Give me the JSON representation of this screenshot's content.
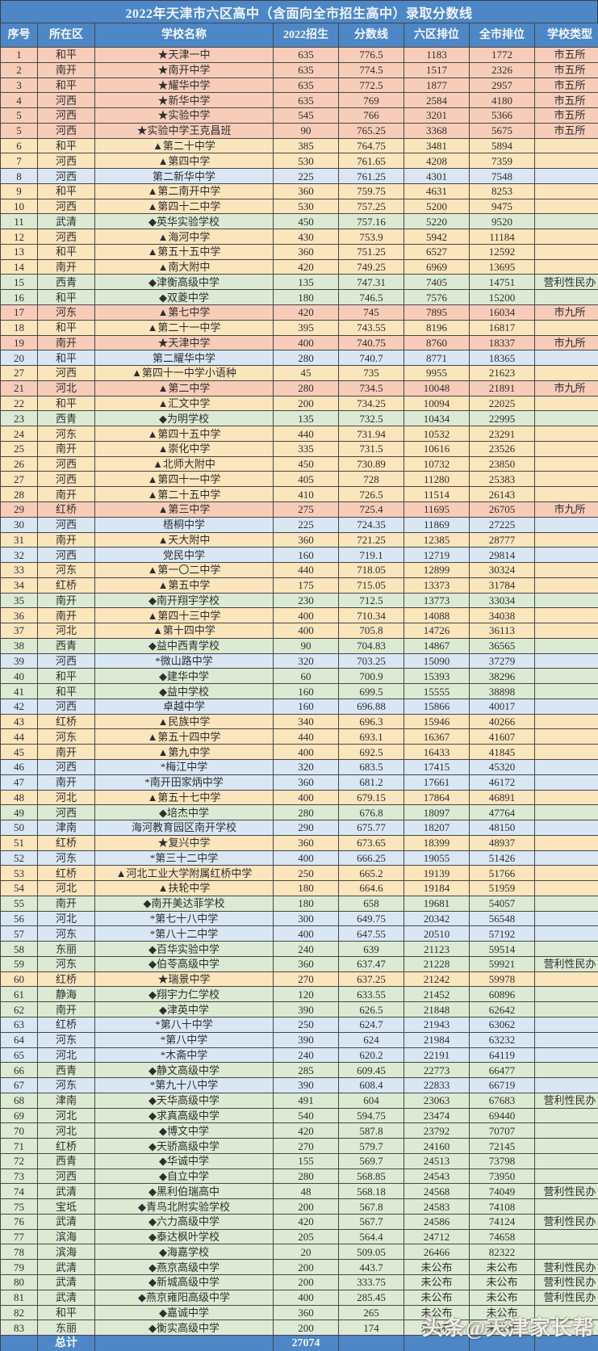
{
  "title": "2022年天津市六区高中（含面向全市招生高中）录取分数线",
  "columns": [
    "序号",
    "所在区",
    "学校名称",
    "2022招生",
    "分数线",
    "六区排位",
    "全市排位",
    "学校类型"
  ],
  "total": {
    "no": "",
    "district": "总计",
    "school": "",
    "enroll": "27074",
    "score": "",
    "rank6": "",
    "rank_city": "",
    "type": ""
  },
  "watermark": "头条@天津家长帮",
  "colors": {
    "header_blue": "#4d87c7",
    "pink": "#f7cdba",
    "yellow": "#fbe5bd",
    "blue": "#d9e7f5",
    "green": "#dcead3"
  },
  "rows": [
    {
      "no": "1",
      "district": "和平",
      "school": "★天津一中",
      "enroll": "635",
      "score": "776.5",
      "rank6": "1183",
      "rank_city": "1772",
      "type": "市五所",
      "color": "pink"
    },
    {
      "no": "2",
      "district": "南开",
      "school": "★南开中学",
      "enroll": "635",
      "score": "774.5",
      "rank6": "1517",
      "rank_city": "2326",
      "type": "市五所",
      "color": "pink"
    },
    {
      "no": "3",
      "district": "和平",
      "school": "★耀华中学",
      "enroll": "635",
      "score": "772.5",
      "rank6": "1877",
      "rank_city": "2957",
      "type": "市五所",
      "color": "pink"
    },
    {
      "no": "4",
      "district": "河西",
      "school": "★新华中学",
      "enroll": "635",
      "score": "769",
      "rank6": "2584",
      "rank_city": "4180",
      "type": "市五所",
      "color": "pink"
    },
    {
      "no": "5",
      "district": "河西",
      "school": "★实验中学",
      "enroll": "545",
      "score": "766",
      "rank6": "3201",
      "rank_city": "5366",
      "type": "市五所",
      "color": "pink"
    },
    {
      "no": "5",
      "district": "河西",
      "school": "★实验中学王克昌班",
      "enroll": "90",
      "score": "765.25",
      "rank6": "3368",
      "rank_city": "5675",
      "type": "市五所",
      "color": "pink"
    },
    {
      "no": "6",
      "district": "和平",
      "school": "▲第二十中学",
      "enroll": "385",
      "score": "764.75",
      "rank6": "3481",
      "rank_city": "5894",
      "type": "",
      "color": "yellow"
    },
    {
      "no": "7",
      "district": "河西",
      "school": "▲第四中学",
      "enroll": "530",
      "score": "761.65",
      "rank6": "4208",
      "rank_city": "7359",
      "type": "",
      "color": "yellow"
    },
    {
      "no": "8",
      "district": "河西",
      "school": "第二新华中学",
      "enroll": "225",
      "score": "761.25",
      "rank6": "4301",
      "rank_city": "7548",
      "type": "",
      "color": "blue"
    },
    {
      "no": "9",
      "district": "和平",
      "school": "▲第二南开中学",
      "enroll": "360",
      "score": "759.75",
      "rank6": "4631",
      "rank_city": "8253",
      "type": "",
      "color": "yellow"
    },
    {
      "no": "10",
      "district": "河西",
      "school": "▲第四十二中学",
      "enroll": "530",
      "score": "757.25",
      "rank6": "5200",
      "rank_city": "9475",
      "type": "",
      "color": "yellow"
    },
    {
      "no": "11",
      "district": "武清",
      "school": "◆英华实验学校",
      "enroll": "450",
      "score": "757.16",
      "rank6": "5220",
      "rank_city": "9520",
      "type": "",
      "color": "green"
    },
    {
      "no": "12",
      "district": "河西",
      "school": "▲海河中学",
      "enroll": "430",
      "score": "753.9",
      "rank6": "5942",
      "rank_city": "11184",
      "type": "",
      "color": "yellow"
    },
    {
      "no": "13",
      "district": "和平",
      "school": "▲第五十五中学",
      "enroll": "360",
      "score": "751.25",
      "rank6": "6527",
      "rank_city": "12592",
      "type": "",
      "color": "yellow"
    },
    {
      "no": "14",
      "district": "南开",
      "school": "▲南大附中",
      "enroll": "420",
      "score": "749.25",
      "rank6": "6969",
      "rank_city": "13695",
      "type": "",
      "color": "yellow"
    },
    {
      "no": "15",
      "district": "西青",
      "school": "◆津衡高级中学",
      "enroll": "135",
      "score": "747.31",
      "rank6": "7405",
      "rank_city": "14751",
      "type": "营利性民办",
      "color": "green"
    },
    {
      "no": "16",
      "district": "和平",
      "school": "◆双菱中学",
      "enroll": "180",
      "score": "746.5",
      "rank6": "7576",
      "rank_city": "15200",
      "type": "",
      "color": "green"
    },
    {
      "no": "17",
      "district": "河东",
      "school": "▲第七中学",
      "enroll": "420",
      "score": "745",
      "rank6": "7895",
      "rank_city": "16034",
      "type": "市九所",
      "color": "pink"
    },
    {
      "no": "18",
      "district": "和平",
      "school": "▲第二十一中学",
      "enroll": "395",
      "score": "743.55",
      "rank6": "8196",
      "rank_city": "16817",
      "type": "",
      "color": "yellow"
    },
    {
      "no": "19",
      "district": "南开",
      "school": "★天津中学",
      "enroll": "400",
      "score": "740.75",
      "rank6": "8760",
      "rank_city": "18337",
      "type": "市九所",
      "color": "pink"
    },
    {
      "no": "20",
      "district": "和平",
      "school": "第二耀华中学",
      "enroll": "280",
      "score": "740.7",
      "rank6": "8771",
      "rank_city": "18365",
      "type": "",
      "color": "blue"
    },
    {
      "no": "27",
      "district": "河西",
      "school": "▲第四十一中学小语种",
      "enroll": "45",
      "score": "735",
      "rank6": "9955",
      "rank_city": "21623",
      "type": "",
      "color": "yellow"
    },
    {
      "no": "21",
      "district": "河北",
      "school": "▲第二中学",
      "enroll": "280",
      "score": "734.5",
      "rank6": "10048",
      "rank_city": "21891",
      "type": "市九所",
      "color": "pink"
    },
    {
      "no": "22",
      "district": "和平",
      "school": "▲汇文中学",
      "enroll": "200",
      "score": "734.25",
      "rank6": "10094",
      "rank_city": "22025",
      "type": "",
      "color": "yellow"
    },
    {
      "no": "23",
      "district": "西青",
      "school": "◆为明学校",
      "enroll": "135",
      "score": "732.5",
      "rank6": "10434",
      "rank_city": "22995",
      "type": "",
      "color": "green"
    },
    {
      "no": "24",
      "district": "河东",
      "school": "▲第四十五中学",
      "enroll": "440",
      "score": "731.94",
      "rank6": "10532",
      "rank_city": "23291",
      "type": "",
      "color": "yellow"
    },
    {
      "no": "25",
      "district": "南开",
      "school": "▲崇化中学",
      "enroll": "335",
      "score": "731.5",
      "rank6": "10616",
      "rank_city": "23526",
      "type": "",
      "color": "yellow"
    },
    {
      "no": "26",
      "district": "河西",
      "school": "▲北师大附中",
      "enroll": "450",
      "score": "730.89",
      "rank6": "10732",
      "rank_city": "23850",
      "type": "",
      "color": "yellow"
    },
    {
      "no": "27",
      "district": "河西",
      "school": "▲第四十一中学",
      "enroll": "405",
      "score": "728",
      "rank6": "11280",
      "rank_city": "25383",
      "type": "",
      "color": "yellow"
    },
    {
      "no": "28",
      "district": "南开",
      "school": "▲第二十五中学",
      "enroll": "410",
      "score": "726.5",
      "rank6": "11514",
      "rank_city": "26143",
      "type": "",
      "color": "yellow"
    },
    {
      "no": "29",
      "district": "红桥",
      "school": "▲第三中学",
      "enroll": "275",
      "score": "725.4",
      "rank6": "11695",
      "rank_city": "26705",
      "type": "市九所",
      "color": "pink"
    },
    {
      "no": "30",
      "district": "河西",
      "school": "梧桐中学",
      "enroll": "225",
      "score": "724.35",
      "rank6": "11869",
      "rank_city": "27225",
      "type": "",
      "color": "blue"
    },
    {
      "no": "31",
      "district": "南开",
      "school": "▲天大附中",
      "enroll": "360",
      "score": "721.25",
      "rank6": "12385",
      "rank_city": "28777",
      "type": "",
      "color": "yellow"
    },
    {
      "no": "32",
      "district": "河西",
      "school": "党民中学",
      "enroll": "160",
      "score": "719.1",
      "rank6": "12719",
      "rank_city": "29814",
      "type": "",
      "color": "blue"
    },
    {
      "no": "33",
      "district": "河东",
      "school": "▲第一〇二中学",
      "enroll": "440",
      "score": "718.05",
      "rank6": "12899",
      "rank_city": "30324",
      "type": "",
      "color": "yellow"
    },
    {
      "no": "34",
      "district": "红桥",
      "school": "▲第五中学",
      "enroll": "175",
      "score": "715.05",
      "rank6": "13373",
      "rank_city": "31784",
      "type": "",
      "color": "yellow"
    },
    {
      "no": "35",
      "district": "南开",
      "school": "◆南开翔宇学校",
      "enroll": "230",
      "score": "712.5",
      "rank6": "13773",
      "rank_city": "33034",
      "type": "",
      "color": "green"
    },
    {
      "no": "36",
      "district": "南开",
      "school": "▲第四十三中学",
      "enroll": "400",
      "score": "710.34",
      "rank6": "14088",
      "rank_city": "34038",
      "type": "",
      "color": "yellow"
    },
    {
      "no": "37",
      "district": "河北",
      "school": "▲第十四中学",
      "enroll": "400",
      "score": "705.8",
      "rank6": "14726",
      "rank_city": "36113",
      "type": "",
      "color": "yellow"
    },
    {
      "no": "38",
      "district": "西青",
      "school": "◆益中西青学校",
      "enroll": "90",
      "score": "704.83",
      "rank6": "14867",
      "rank_city": "36565",
      "type": "",
      "color": "green"
    },
    {
      "no": "39",
      "district": "河西",
      "school": "*微山路中学",
      "enroll": "320",
      "score": "703.25",
      "rank6": "15090",
      "rank_city": "37279",
      "type": "",
      "color": "blue"
    },
    {
      "no": "40",
      "district": "和平",
      "school": "◆建华中学",
      "enroll": "60",
      "score": "700.9",
      "rank6": "15393",
      "rank_city": "38296",
      "type": "",
      "color": "green"
    },
    {
      "no": "41",
      "district": "和平",
      "school": "◆益中学校",
      "enroll": "160",
      "score": "699.5",
      "rank6": "15555",
      "rank_city": "38898",
      "type": "",
      "color": "green"
    },
    {
      "no": "42",
      "district": "河西",
      "school": "卓越中学",
      "enroll": "160",
      "score": "696.88",
      "rank6": "15866",
      "rank_city": "40017",
      "type": "",
      "color": "blue"
    },
    {
      "no": "43",
      "district": "红桥",
      "school": "▲民族中学",
      "enroll": "340",
      "score": "696.3",
      "rank6": "15946",
      "rank_city": "40266",
      "type": "",
      "color": "yellow"
    },
    {
      "no": "44",
      "district": "河东",
      "school": "▲第五十四中学",
      "enroll": "440",
      "score": "693.1",
      "rank6": "16367",
      "rank_city": "41607",
      "type": "",
      "color": "yellow"
    },
    {
      "no": "45",
      "district": "南开",
      "school": "▲第九中学",
      "enroll": "400",
      "score": "692.5",
      "rank6": "16433",
      "rank_city": "41845",
      "type": "",
      "color": "yellow"
    },
    {
      "no": "46",
      "district": "河西",
      "school": "*梅江中学",
      "enroll": "320",
      "score": "683.5",
      "rank6": "17415",
      "rank_city": "45320",
      "type": "",
      "color": "blue"
    },
    {
      "no": "47",
      "district": "南开",
      "school": "*南开田家炳中学",
      "enroll": "360",
      "score": "681.2",
      "rank6": "17661",
      "rank_city": "46172",
      "type": "",
      "color": "blue"
    },
    {
      "no": "48",
      "district": "河北",
      "school": "▲第五十七中学",
      "enroll": "400",
      "score": "679.15",
      "rank6": "17864",
      "rank_city": "46891",
      "type": "",
      "color": "yellow"
    },
    {
      "no": "49",
      "district": "河西",
      "school": "◆培杰中学",
      "enroll": "280",
      "score": "676.8",
      "rank6": "18097",
      "rank_city": "47764",
      "type": "",
      "color": "green"
    },
    {
      "no": "50",
      "district": "津南",
      "school": "海河教育园区南开学校",
      "enroll": "290",
      "score": "675.77",
      "rank6": "18207",
      "rank_city": "48150",
      "type": "",
      "color": "blue"
    },
    {
      "no": "51",
      "district": "红桥",
      "school": "★复兴中学",
      "enroll": "360",
      "score": "673.65",
      "rank6": "18399",
      "rank_city": "48937",
      "type": "",
      "color": "yellow"
    },
    {
      "no": "52",
      "district": "河东",
      "school": "*第三十二中学",
      "enroll": "400",
      "score": "666.25",
      "rank6": "19055",
      "rank_city": "51426",
      "type": "",
      "color": "blue"
    },
    {
      "no": "53",
      "district": "红桥",
      "school": "▲河北工业大学附属红桥中学",
      "enroll": "250",
      "score": "665.2",
      "rank6": "19139",
      "rank_city": "51766",
      "type": "",
      "color": "yellow"
    },
    {
      "no": "54",
      "district": "河北",
      "school": "▲扶轮中学",
      "enroll": "180",
      "score": "664.6",
      "rank6": "19184",
      "rank_city": "51959",
      "type": "",
      "color": "yellow"
    },
    {
      "no": "55",
      "district": "南开",
      "school": "◆南开美达菲学校",
      "enroll": "180",
      "score": "658",
      "rank6": "19681",
      "rank_city": "54057",
      "type": "",
      "color": "green"
    },
    {
      "no": "56",
      "district": "河北",
      "school": "*第七十八中学",
      "enroll": "300",
      "score": "649.75",
      "rank6": "20342",
      "rank_city": "56548",
      "type": "",
      "color": "blue"
    },
    {
      "no": "57",
      "district": "河东",
      "school": "*第八十二中学",
      "enroll": "400",
      "score": "647.55",
      "rank6": "20510",
      "rank_city": "57192",
      "type": "",
      "color": "blue"
    },
    {
      "no": "58",
      "district": "东丽",
      "school": "◆百华实验中学",
      "enroll": "240",
      "score": "639",
      "rank6": "21123",
      "rank_city": "59514",
      "type": "",
      "color": "green"
    },
    {
      "no": "59",
      "district": "河东",
      "school": "◆伯苓高级中学",
      "enroll": "360",
      "score": "637.47",
      "rank6": "21228",
      "rank_city": "59921",
      "type": "营利性民办",
      "color": "green"
    },
    {
      "no": "60",
      "district": "红桥",
      "school": "★瑞景中学",
      "enroll": "270",
      "score": "637.25",
      "rank6": "21242",
      "rank_city": "59978",
      "type": "",
      "color": "yellow"
    },
    {
      "no": "61",
      "district": "静海",
      "school": "◆翔宇力仁学校",
      "enroll": "120",
      "score": "633.55",
      "rank6": "21452",
      "rank_city": "60896",
      "type": "",
      "color": "green"
    },
    {
      "no": "62",
      "district": "南开",
      "school": "◆津英中学",
      "enroll": "390",
      "score": "626.5",
      "rank6": "21848",
      "rank_city": "62642",
      "type": "",
      "color": "green"
    },
    {
      "no": "63",
      "district": "红桥",
      "school": "*第八十中学",
      "enroll": "250",
      "score": "624.7",
      "rank6": "21943",
      "rank_city": "63062",
      "type": "",
      "color": "blue"
    },
    {
      "no": "64",
      "district": "河东",
      "school": "*第八中学",
      "enroll": "390",
      "score": "624",
      "rank6": "21984",
      "rank_city": "63232",
      "type": "",
      "color": "blue"
    },
    {
      "no": "65",
      "district": "河北",
      "school": "*木斋中学",
      "enroll": "240",
      "score": "620.2",
      "rank6": "22191",
      "rank_city": "64119",
      "type": "",
      "color": "blue"
    },
    {
      "no": "66",
      "district": "西青",
      "school": "◆静文高级中学",
      "enroll": "285",
      "score": "609.45",
      "rank6": "22773",
      "rank_city": "66477",
      "type": "",
      "color": "green"
    },
    {
      "no": "67",
      "district": "河东",
      "school": "*第九十八中学",
      "enroll": "390",
      "score": "608.4",
      "rank6": "22833",
      "rank_city": "66719",
      "type": "",
      "color": "blue"
    },
    {
      "no": "68",
      "district": "津南",
      "school": "◆天华高级中学",
      "enroll": "491",
      "score": "604",
      "rank6": "23063",
      "rank_city": "67683",
      "type": "营利性民办",
      "color": "green"
    },
    {
      "no": "69",
      "district": "河北",
      "school": "◆求真高级中学",
      "enroll": "540",
      "score": "594.75",
      "rank6": "23474",
      "rank_city": "69440",
      "type": "",
      "color": "green"
    },
    {
      "no": "70",
      "district": "河北",
      "school": "◆博文中学",
      "enroll": "420",
      "score": "587.8",
      "rank6": "23792",
      "rank_city": "70707",
      "type": "",
      "color": "green"
    },
    {
      "no": "71",
      "district": "红桥",
      "school": "◆天骄高级中学",
      "enroll": "270",
      "score": "579.7",
      "rank6": "24160",
      "rank_city": "72145",
      "type": "",
      "color": "green"
    },
    {
      "no": "72",
      "district": "西青",
      "school": "◆华诚中学",
      "enroll": "155",
      "score": "569.7",
      "rank6": "24513",
      "rank_city": "73798",
      "type": "",
      "color": "green"
    },
    {
      "no": "73",
      "district": "河西",
      "school": "◆自立中学",
      "enroll": "280",
      "score": "568.85",
      "rank6": "24543",
      "rank_city": "73950",
      "type": "",
      "color": "green"
    },
    {
      "no": "74",
      "district": "武清",
      "school": "◆黑利伯瑞高中",
      "enroll": "48",
      "score": "568.18",
      "rank6": "24568",
      "rank_city": "74049",
      "type": "营利性民办",
      "color": "green"
    },
    {
      "no": "75",
      "district": "宝坻",
      "school": "◆青鸟北附实验学校",
      "enroll": "200",
      "score": "567.8",
      "rank6": "24583",
      "rank_city": "74108",
      "type": "",
      "color": "green"
    },
    {
      "no": "76",
      "district": "武清",
      "school": "◆六力高级中学",
      "enroll": "420",
      "score": "567.7",
      "rank6": "24586",
      "rank_city": "74124",
      "type": "营利性民办",
      "color": "green"
    },
    {
      "no": "77",
      "district": "滨海",
      "school": "◆泰达枫叶学校",
      "enroll": "205",
      "score": "564.4",
      "rank6": "24712",
      "rank_city": "74658",
      "type": "",
      "color": "green"
    },
    {
      "no": "78",
      "district": "滨海",
      "school": "◆海嘉学校",
      "enroll": "20",
      "score": "509.05",
      "rank6": "26466",
      "rank_city": "82322",
      "type": "",
      "color": "green"
    },
    {
      "no": "79",
      "district": "武清",
      "school": "◆燕京高级中学",
      "enroll": "200",
      "score": "443.7",
      "rank6": "未公布",
      "rank_city": "未公布",
      "type": "营利性民办",
      "color": "green"
    },
    {
      "no": "80",
      "district": "武清",
      "school": "◆新城高级中学",
      "enroll": "200",
      "score": "333.75",
      "rank6": "未公布",
      "rank_city": "未公布",
      "type": "营利性民办",
      "color": "green"
    },
    {
      "no": "81",
      "district": "武清",
      "school": "◆燕京雍阳高级中学",
      "enroll": "400",
      "score": "285.45",
      "rank6": "未公布",
      "rank_city": "未公布",
      "type": "营利性民办",
      "color": "green"
    },
    {
      "no": "82",
      "district": "和平",
      "school": "◆嘉诚中学",
      "enroll": "360",
      "score": "265",
      "rank6": "未公布",
      "rank_city": "未公布",
      "type": "",
      "color": "green"
    },
    {
      "no": "83",
      "district": "东丽",
      "school": "◆衡实高级中学",
      "enroll": "200",
      "score": "174",
      "rank6": "未公布",
      "rank_city": "未公布",
      "type": "",
      "color": "green"
    }
  ]
}
